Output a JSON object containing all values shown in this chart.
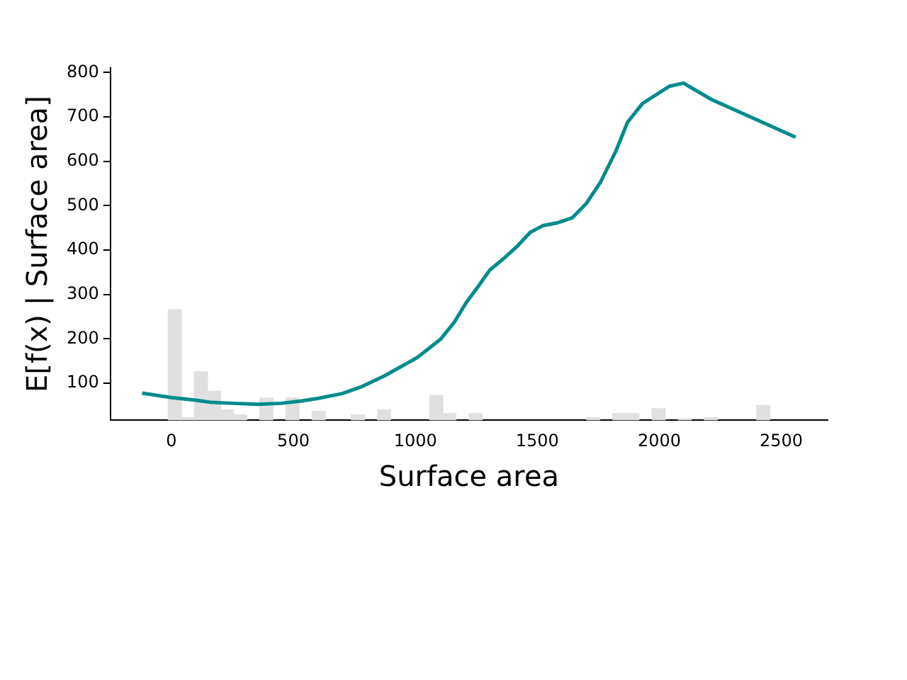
{
  "chart_data": {
    "type": "line",
    "xlabel": "Surface area",
    "ylabel": "E[f(x) | Surface area]",
    "xlim": [
      -250,
      2690
    ],
    "ylim": [
      17,
      810
    ],
    "xticks": [
      0,
      500,
      1000,
      1500,
      2000,
      2500
    ],
    "yticks": [
      100,
      200,
      300,
      400,
      500,
      600,
      700,
      800
    ],
    "grid": false,
    "legend": false,
    "marker": "none",
    "line_style": "solid",
    "series": [
      {
        "type": "histogram",
        "color": "#e0e0e0",
        "bins": [
          -120,
          -66.4,
          -12.8,
          40.8,
          94.4,
          148,
          201.6,
          255.2,
          308.8,
          362.4,
          416,
          469.6,
          523.2,
          576.8,
          630.4,
          684,
          737.6,
          791.2,
          844.8,
          898.4,
          952,
          1005.6,
          1059.2,
          1112.8,
          1166.4,
          1220,
          1273.6,
          1327.2,
          1380.8,
          1434.4,
          1488,
          1541.6,
          1595.2,
          1648.8,
          1702.4,
          1756,
          1809.6,
          1863.2,
          1916.8,
          1970.4,
          2024,
          2077.6,
          2131.2,
          2184.8,
          2238.4,
          2292,
          2345.6,
          2399.2,
          2452.8,
          2506.4,
          2560
        ],
        "values": [
          null,
          null,
          266,
          23,
          126,
          82,
          40,
          29,
          null,
          67,
          null,
          67,
          null,
          37,
          null,
          null,
          29,
          null,
          40,
          null,
          null,
          null,
          73,
          32,
          null,
          32,
          null,
          null,
          null,
          null,
          null,
          null,
          null,
          null,
          23,
          null,
          32,
          32,
          null,
          43,
          null,
          20,
          null,
          23,
          null,
          null,
          null,
          50,
          null,
          null
        ]
      },
      {
        "color": "#008b8b",
        "x": [
          -120,
          0,
          100,
          165,
          250,
          356,
          450,
          529,
          600,
          700,
          778,
          874,
          1008,
          1103,
          1160,
          1209,
          1260,
          1305,
          1362,
          1420,
          1471,
          1523,
          1580,
          1644,
          1701,
          1759,
          1822,
          1870,
          1931,
          2042,
          2099,
          2214,
          2559
        ],
        "values": [
          78,
          68,
          62,
          57,
          55,
          53,
          55,
          60,
          66,
          77,
          92,
          117,
          158,
          199,
          238,
          282,
          320,
          355,
          381,
          410,
          440,
          455,
          461,
          473,
          505,
          553,
          623,
          688,
          730,
          769,
          776,
          739,
          654
        ]
      }
    ]
  }
}
